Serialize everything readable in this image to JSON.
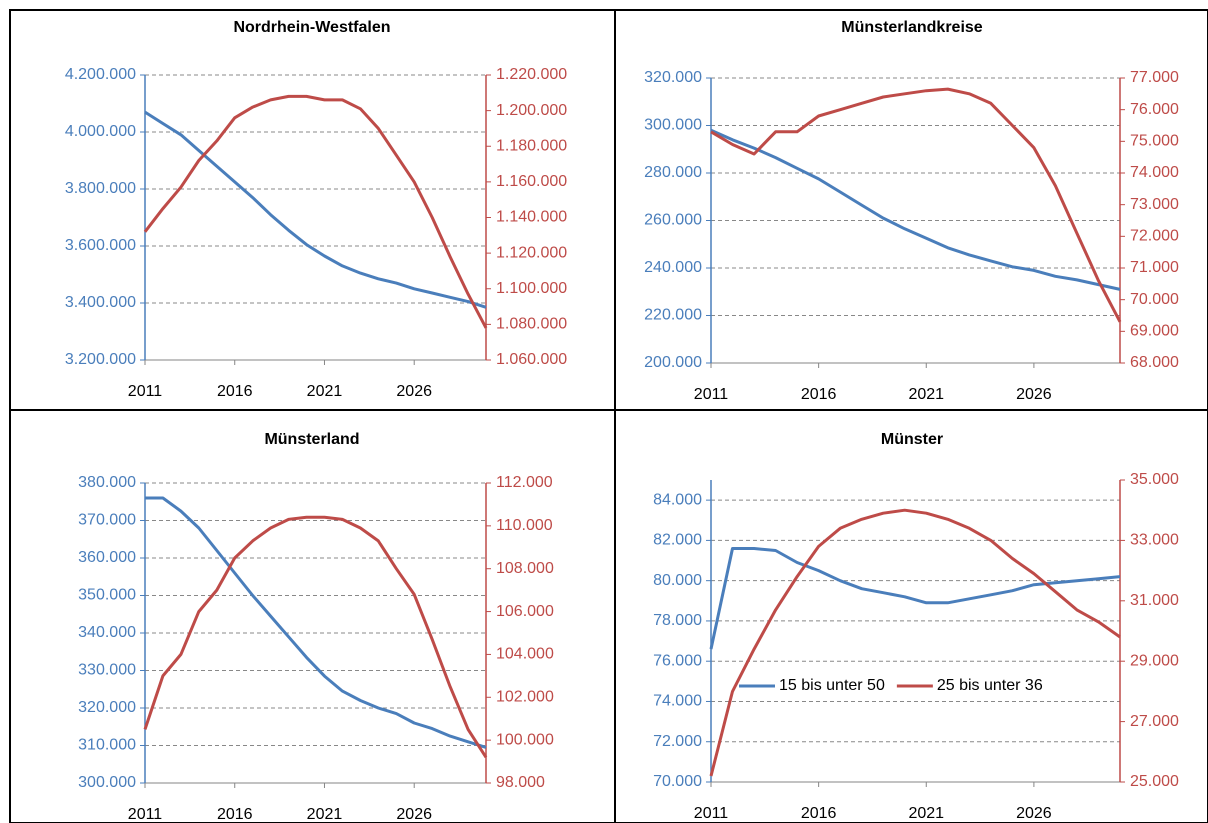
{
  "chart_data": [
    {
      "type": "line",
      "title": "Nordrhein-Westfalen",
      "x": [
        2011,
        2012,
        2013,
        2014,
        2015,
        2016,
        2017,
        2018,
        2019,
        2020,
        2021,
        2022,
        2023,
        2024,
        2025,
        2026,
        2027,
        2028,
        2029,
        2030
      ],
      "xlim": [
        2011,
        2030
      ],
      "xticks": [
        2011,
        2016,
        2021,
        2026
      ],
      "ylim": [
        3200000,
        4200000
      ],
      "yticks": [
        {
          "value": 3200000,
          "label": "3.200.000"
        },
        {
          "value": 3400000,
          "label": "3.400.000"
        },
        {
          "value": 3600000,
          "label": "3.600.000"
        },
        {
          "value": 3800000,
          "label": "3.800.000"
        },
        {
          "value": 4000000,
          "label": "4.000.000"
        },
        {
          "value": 4200000,
          "label": "4.200.000"
        }
      ],
      "y2lim": [
        1060000,
        1220000
      ],
      "y2ticks": [
        {
          "value": 1060000,
          "label": "1.060.000"
        },
        {
          "value": 1080000,
          "label": "1.080.000"
        },
        {
          "value": 1100000,
          "label": "1.100.000"
        },
        {
          "value": 1120000,
          "label": "1.120.000"
        },
        {
          "value": 1140000,
          "label": "1.140.000"
        },
        {
          "value": 1160000,
          "label": "1.160.000"
        },
        {
          "value": 1180000,
          "label": "1.180.000"
        },
        {
          "value": 1200000,
          "label": "1.200.000"
        },
        {
          "value": 1220000,
          "label": "1.220.000"
        }
      ],
      "grid": true,
      "series": [
        {
          "color": "#4a7ebb",
          "values": [
            4070000,
            4030000,
            3990000,
            3935000,
            3880000,
            3825000,
            3770000,
            3710000,
            3655000,
            3605000,
            3565000,
            3530000,
            3505000,
            3485000,
            3470000,
            3450000,
            3435000,
            3420000,
            3405000,
            3385000
          ]
        },
        {
          "color": "#be4b48",
          "axis": "y2",
          "values": [
            1132000,
            1145000,
            1157000,
            1172000,
            1183000,
            1196000,
            1202000,
            1206000,
            1208000,
            1208000,
            1206000,
            1206000,
            1201000,
            1190000,
            1175000,
            1160000,
            1140000,
            1118000,
            1097000,
            1078000
          ]
        }
      ]
    },
    {
      "type": "line",
      "title": "Münsterlandkreise",
      "x": [
        2011,
        2012,
        2013,
        2014,
        2015,
        2016,
        2017,
        2018,
        2019,
        2020,
        2021,
        2022,
        2023,
        2024,
        2025,
        2026,
        2027,
        2028,
        2029,
        2030
      ],
      "xlim": [
        2011,
        2030
      ],
      "xticks": [
        2011,
        2016,
        2021,
        2026
      ],
      "ylim": [
        200000,
        320000
      ],
      "yticks": [
        {
          "value": 200000,
          "label": "200.000"
        },
        {
          "value": 220000,
          "label": "220.000"
        },
        {
          "value": 240000,
          "label": "240.000"
        },
        {
          "value": 260000,
          "label": "260.000"
        },
        {
          "value": 280000,
          "label": "280.000"
        },
        {
          "value": 300000,
          "label": "300.000"
        },
        {
          "value": 320000,
          "label": "320.000"
        }
      ],
      "y2lim": [
        68000,
        77000
      ],
      "y2ticks": [
        {
          "value": 68000,
          "label": "68.000"
        },
        {
          "value": 69000,
          "label": "69.000"
        },
        {
          "value": 70000,
          "label": "70.000"
        },
        {
          "value": 71000,
          "label": "71.000"
        },
        {
          "value": 72000,
          "label": "72.000"
        },
        {
          "value": 73000,
          "label": "73.000"
        },
        {
          "value": 74000,
          "label": "74.000"
        },
        {
          "value": 75000,
          "label": "75.000"
        },
        {
          "value": 76000,
          "label": "76.000"
        },
        {
          "value": 77000,
          "label": "77.000"
        }
      ],
      "grid": true,
      "series": [
        {
          "color": "#4a7ebb",
          "values": [
            298000,
            294000,
            290500,
            286500,
            282000,
            277500,
            272000,
            266500,
            261000,
            256500,
            252500,
            248500,
            245500,
            243000,
            240500,
            239000,
            236500,
            235000,
            233000,
            231000
          ]
        },
        {
          "color": "#be4b48",
          "axis": "y2",
          "values": [
            75300,
            74900,
            74600,
            75300,
            75300,
            75800,
            76000,
            76200,
            76400,
            76500,
            76600,
            76650,
            76500,
            76200,
            75500,
            74800,
            73600,
            72100,
            70600,
            69300
          ]
        }
      ]
    },
    {
      "type": "line",
      "title": "Münsterland",
      "x": [
        2011,
        2012,
        2013,
        2014,
        2015,
        2016,
        2017,
        2018,
        2019,
        2020,
        2021,
        2022,
        2023,
        2024,
        2025,
        2026,
        2027,
        2028,
        2029,
        2030
      ],
      "xlim": [
        2011,
        2030
      ],
      "xticks": [
        2011,
        2016,
        2021,
        2026
      ],
      "ylim": [
        300000,
        380000
      ],
      "yticks": [
        {
          "value": 300000,
          "label": "300.000"
        },
        {
          "value": 310000,
          "label": "310.000"
        },
        {
          "value": 320000,
          "label": "320.000"
        },
        {
          "value": 330000,
          "label": "330.000"
        },
        {
          "value": 340000,
          "label": "340.000"
        },
        {
          "value": 350000,
          "label": "350.000"
        },
        {
          "value": 360000,
          "label": "360.000"
        },
        {
          "value": 370000,
          "label": "370.000"
        },
        {
          "value": 380000,
          "label": "380.000"
        }
      ],
      "y2lim": [
        98000,
        112000
      ],
      "y2ticks": [
        {
          "value": 98000,
          "label": "98.000"
        },
        {
          "value": 100000,
          "label": "100.000"
        },
        {
          "value": 102000,
          "label": "102.000"
        },
        {
          "value": 104000,
          "label": "104.000"
        },
        {
          "value": 106000,
          "label": "106.000"
        },
        {
          "value": 108000,
          "label": "108.000"
        },
        {
          "value": 110000,
          "label": "110.000"
        },
        {
          "value": 112000,
          "label": "112.000"
        }
      ],
      "grid": true,
      "series": [
        {
          "color": "#4a7ebb",
          "values": [
            376000,
            376000,
            372500,
            368000,
            362000,
            356000,
            350000,
            344500,
            339000,
            333500,
            328500,
            324500,
            322000,
            320000,
            318500,
            316000,
            314500,
            312500,
            311000,
            309500
          ]
        },
        {
          "color": "#be4b48",
          "axis": "y2",
          "values": [
            100500,
            103000,
            104000,
            106000,
            107000,
            108500,
            109300,
            109900,
            110300,
            110400,
            110400,
            110300,
            109900,
            109300,
            108000,
            106800,
            104700,
            102500,
            100500,
            99200
          ]
        }
      ]
    },
    {
      "type": "line",
      "title": "Münster",
      "x": [
        2011,
        2012,
        2013,
        2014,
        2015,
        2016,
        2017,
        2018,
        2019,
        2020,
        2021,
        2022,
        2023,
        2024,
        2025,
        2026,
        2027,
        2028,
        2029,
        2030
      ],
      "xlim": [
        2011,
        2030
      ],
      "xticks": [
        2011,
        2016,
        2021,
        2026
      ],
      "ylim": [
        70000,
        85000
      ],
      "yticks": [
        {
          "value": 70000,
          "label": "70.000"
        },
        {
          "value": 72000,
          "label": "72.000"
        },
        {
          "value": 74000,
          "label": "74.000"
        },
        {
          "value": 76000,
          "label": "76.000"
        },
        {
          "value": 78000,
          "label": "78.000"
        },
        {
          "value": 80000,
          "label": "80.000"
        },
        {
          "value": 82000,
          "label": "82.000"
        },
        {
          "value": 84000,
          "label": "84.000"
        }
      ],
      "y2lim": [
        25000,
        35000
      ],
      "y2ticks": [
        {
          "value": 25000,
          "label": "25.000"
        },
        {
          "value": 27000,
          "label": "27.000"
        },
        {
          "value": 29000,
          "label": "29.000"
        },
        {
          "value": 31000,
          "label": "31.000"
        },
        {
          "value": 33000,
          "label": "33.000"
        },
        {
          "value": 35000,
          "label": "35.000"
        }
      ],
      "grid": true,
      "legend": "center",
      "series": [
        {
          "name": "15 bis unter 50",
          "color": "#4a7ebb",
          "values": [
            76600,
            81600,
            81600,
            81500,
            80900,
            80500,
            80000,
            79600,
            79400,
            79200,
            78900,
            78900,
            79100,
            79300,
            79500,
            79800,
            79900,
            80000,
            80100,
            80200
          ]
        },
        {
          "name": "25 bis unter 36",
          "color": "#be4b48",
          "axis": "y2",
          "values": [
            25200,
            28000,
            29400,
            30700,
            31800,
            32800,
            33400,
            33700,
            33900,
            34000,
            33900,
            33700,
            33400,
            33000,
            32400,
            31900,
            31300,
            30700,
            30300,
            29800
          ]
        }
      ]
    }
  ]
}
